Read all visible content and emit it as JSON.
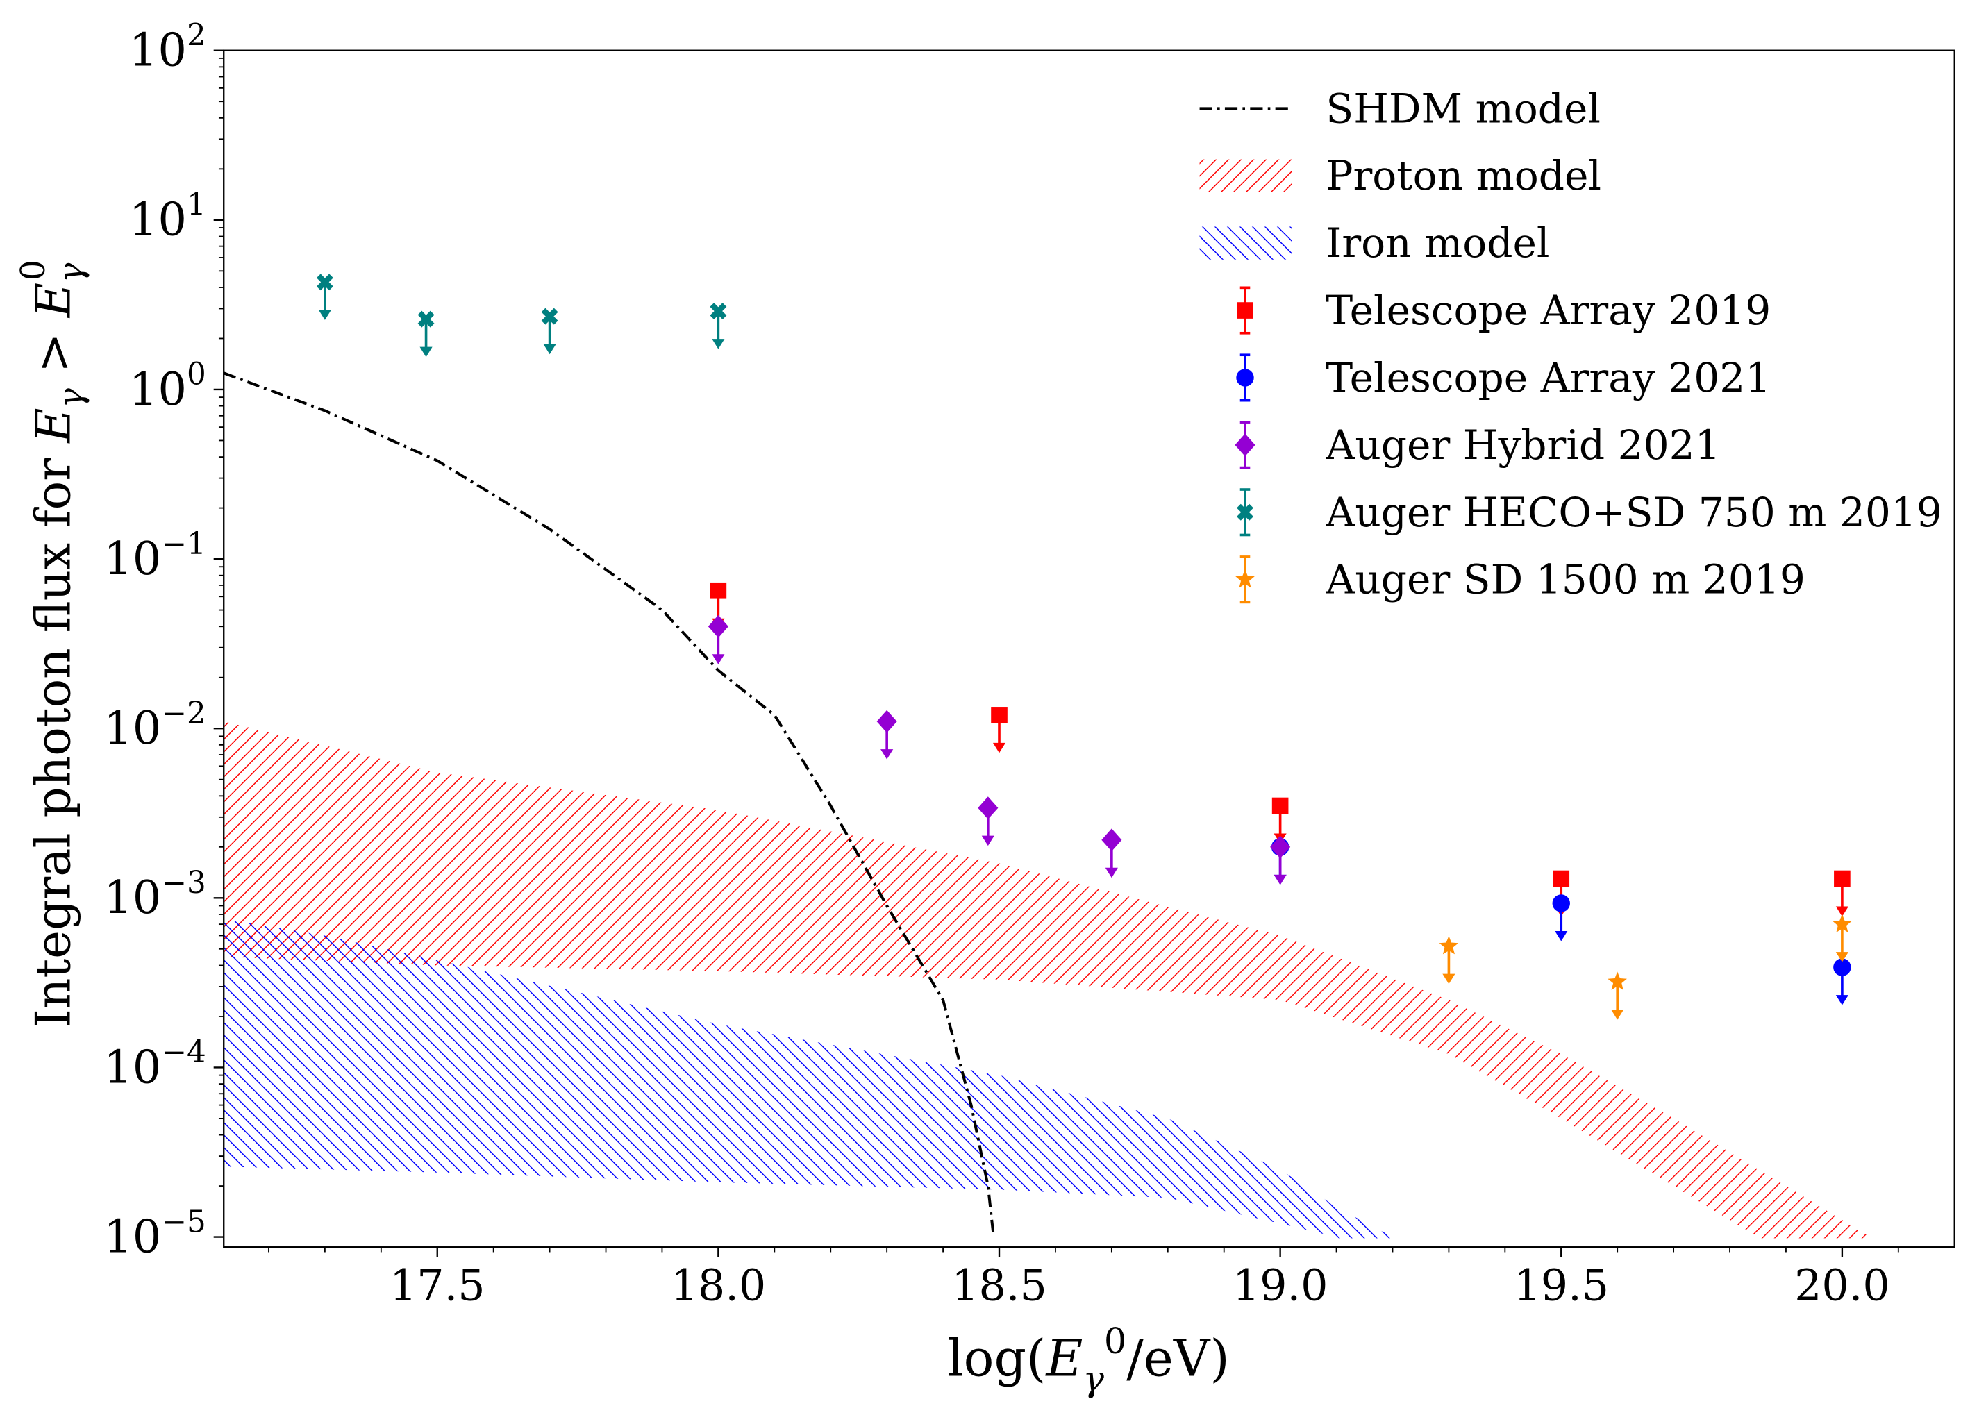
{
  "chart_data": {
    "type": "scatter",
    "title": "",
    "xlabel": "log(E_γ^0/eV)",
    "ylabel": "Integral photon flux for E_γ > E_γ^0",
    "xlim": [
      17.12,
      20.2
    ],
    "ylim_log10": [
      -5.06,
      2
    ],
    "yscale": "log",
    "grid": false,
    "legend_position": "top-right",
    "xticks": [
      "17.5",
      "18.0",
      "18.5",
      "19.0",
      "19.5",
      "20.0"
    ],
    "xtick_values": [
      17.5,
      18.0,
      18.5,
      19.0,
      19.5,
      20.0
    ],
    "yticks": [
      {
        "base": "10",
        "exp": "2"
      },
      {
        "base": "10",
        "exp": "1"
      },
      {
        "base": "10",
        "exp": "0"
      },
      {
        "base": "10",
        "exp": "−1"
      },
      {
        "base": "10",
        "exp": "−2"
      },
      {
        "base": "10",
        "exp": "−3"
      },
      {
        "base": "10",
        "exp": "−4"
      },
      {
        "base": "10",
        "exp": "−5"
      }
    ],
    "ytick_values": [
      2,
      1,
      0,
      -1,
      -2,
      -3,
      -4,
      -5
    ],
    "lines": [
      {
        "name": "SHDM model",
        "color": "#000000",
        "style": "dashdot",
        "x": [
          17.12,
          17.3,
          17.5,
          17.7,
          17.9,
          18.0,
          18.1,
          18.15,
          18.2,
          18.3,
          18.4,
          18.45,
          18.48,
          18.49
        ],
        "y": [
          1.25,
          0.75,
          0.38,
          0.15,
          0.05,
          0.022,
          0.012,
          0.0065,
          0.0035,
          0.0009,
          0.00025,
          6e-05,
          2e-05,
          1e-05
        ]
      }
    ],
    "bands": [
      {
        "name": "Proton model",
        "color": "#ff0000",
        "hatch": "////",
        "upper_x": [
          17.12,
          17.5,
          18.0,
          18.5,
          19.0,
          19.3,
          19.5,
          19.7,
          19.9,
          20.05
        ],
        "upper_y": [
          0.011,
          0.0055,
          0.0033,
          0.0016,
          0.0006,
          0.00025,
          0.00012,
          5e-05,
          2e-05,
          1e-05
        ],
        "lower_x": [
          17.12,
          17.5,
          18.0,
          18.5,
          19.0,
          19.3,
          19.5,
          19.7,
          19.85
        ],
        "lower_y": [
          0.00045,
          0.0004,
          0.00037,
          0.00033,
          0.00025,
          0.00012,
          5e-05,
          2e-05,
          1e-05
        ]
      },
      {
        "name": "Iron model",
        "color": "#0000ff",
        "hatch": "\\\\\\\\",
        "upper_x": [
          17.12,
          17.3,
          17.5,
          18.0,
          18.5,
          18.8,
          19.0,
          19.1,
          19.2
        ],
        "upper_y": [
          0.00075,
          0.0006,
          0.00043,
          0.00018,
          9e-05,
          5e-05,
          2.5e-05,
          1.5e-05,
          1e-05
        ],
        "lower_x": [
          17.12,
          17.5,
          18.0,
          18.5,
          18.8,
          19.0,
          19.1
        ],
        "lower_y": [
          2.6e-05,
          2.4e-05,
          2.1e-05,
          1.9e-05,
          1.7e-05,
          1.2e-05,
          1e-05
        ]
      }
    ],
    "series": [
      {
        "name": "Telescope Array 2019",
        "color": "#ff0000",
        "marker": "square",
        "upper_limit": true,
        "x": [
          18.0,
          18.5,
          19.0,
          19.5,
          20.0
        ],
        "y": [
          0.065,
          0.012,
          0.0035,
          0.0013,
          0.0013
        ]
      },
      {
        "name": "Telescope Array 2021",
        "color": "#0000ff",
        "marker": "circle",
        "upper_limit": true,
        "x": [
          19.0,
          19.5,
          20.0
        ],
        "y": [
          0.002,
          0.00093,
          0.00039
        ]
      },
      {
        "name": "Auger Hybrid 2021",
        "color": "#9400d3",
        "marker": "diamond",
        "upper_limit": true,
        "x": [
          18.0,
          18.3,
          18.48,
          18.7,
          19.0
        ],
        "y": [
          0.04,
          0.011,
          0.0034,
          0.0022,
          0.002
        ]
      },
      {
        "name": "Auger HECO+SD 750 m 2019",
        "color": "#008080",
        "marker": "x",
        "upper_limit": true,
        "x": [
          17.3,
          17.48,
          17.7,
          18.0
        ],
        "y": [
          4.3,
          2.6,
          2.7,
          2.9
        ]
      },
      {
        "name": "Auger SD 1500 m 2019",
        "color": "#ff8c00",
        "marker": "star",
        "upper_limit": true,
        "x": [
          19.3,
          19.6,
          20.0
        ],
        "y": [
          0.00052,
          0.00032,
          0.0007
        ]
      }
    ],
    "legend": [
      "SHDM model",
      "Proton model",
      "Iron model",
      "Telescope Array 2019",
      "Telescope Array 2021",
      "Auger Hybrid 2021",
      "Auger HECO+SD 750 m 2019",
      "Auger SD 1500 m 2019"
    ]
  }
}
